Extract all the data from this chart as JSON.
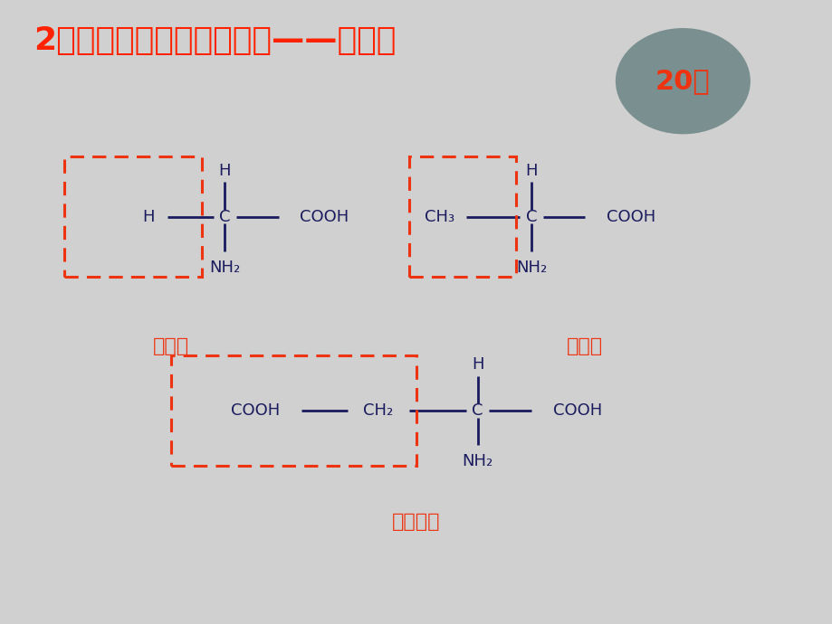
{
  "title": "2、蛋白质的基本组成单位——氨基酸",
  "title_color": "#FF2200",
  "title_fontsize": 26,
  "bg_color": "#D0D0D0",
  "panel_bg": "#FFFFFF",
  "text_color": "#1A1A5E",
  "red_color": "#EE3311",
  "label_gly": "甘氨酸",
  "label_ala": "丙氨酸",
  "label_asp": "天冬氨酸",
  "badge_text": "20种",
  "badge_color": "#7A9090",
  "dashed_color": "#EE3311"
}
